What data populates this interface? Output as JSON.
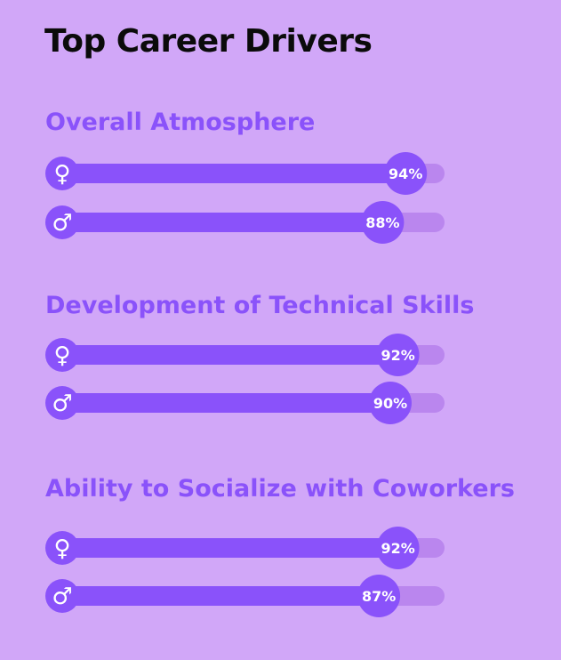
{
  "chart_data": {
    "type": "bar",
    "title": "Top Career Drivers",
    "categories": [
      "Overall Atmosphere",
      "Development of Technical Skills",
      "Ability to Socialize with Coworkers"
    ],
    "series": [
      {
        "icon": "female-symbol-icon",
        "glyph": "♀",
        "values": [
          94,
          92,
          92
        ]
      },
      {
        "icon": "male-symbol-icon",
        "glyph": "♂",
        "values": [
          88,
          90,
          87
        ]
      }
    ],
    "value_format": "{v}%",
    "xlim": [
      0,
      100
    ],
    "grid": false,
    "colors": {
      "background": "#d1a7f8",
      "bar": "#8a52fa",
      "track": "#ba86ee",
      "category_text": "#8a52fa",
      "title_text": "#0b0b0b",
      "label_text": "#ffffff"
    }
  }
}
